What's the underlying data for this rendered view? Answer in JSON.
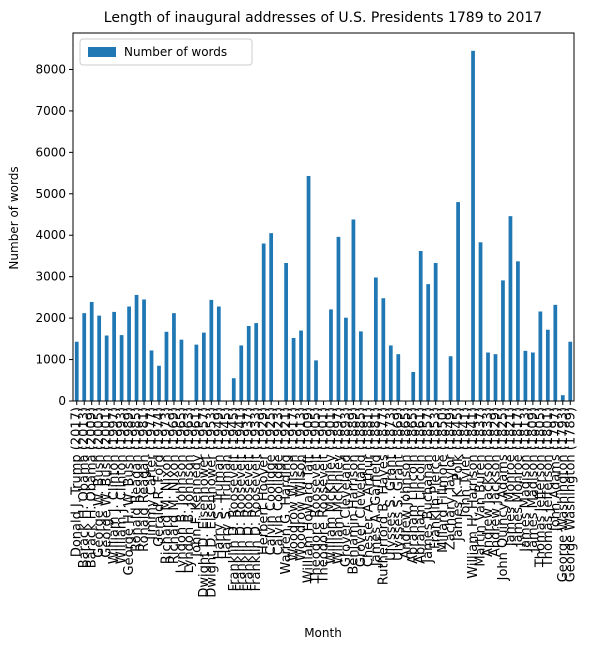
{
  "chart_data": {
    "type": "bar",
    "title": "Length of inaugural addresses of U.S. Presidents 1789 to 2017",
    "xlabel": "Month",
    "ylabel": "Number of words",
    "legend": "upper left",
    "categories": [
      "Donald J. Trump (2017)",
      "Barack H. Obama (2013)",
      "Barack H. Obama (2009)",
      "George W. Bush (2005)",
      "George W. Bush (2001)",
      "William J. Clinton (1997)",
      "William J. Clinton (1993)",
      "George H. W. Bush (1989)",
      "Ronald Reagan (1985)",
      "Ronald Reagan (1981)",
      "Jimmy Carter (1977)",
      "Gerald R. Ford (1974)",
      "Richard M. Nixon (1973)",
      "Richard M. Nixon (1969)",
      "Lyndon B. Johnson (1965)",
      "Lyndon B. Johnson (1963)",
      "John F. Kennedy (1961)",
      "Dwight D. Eisenhower (1957)",
      "Dwight D. Eisenhower (1953)",
      "Harry S. Truman (1949)",
      "Harry S. Truman (1945)",
      "Franklin D. Roosevelt (1945)",
      "Franklin D. Roosevelt (1941)",
      "Franklin D. Roosevelt (1937)",
      "Franklin D. Roosevelt (1933)",
      "Herbert Hoover (1929)",
      "Calvin Coolidge (1925)",
      "Calvin Coolidge (1923)",
      "Warren G. Harding (1921)",
      "Woodrow Wilson (1917)",
      "Woodrow Wilson (1913)",
      "William Howard Taft (1909)",
      "Theodore Roosevelt (1905)",
      "Theodore Roosevelt (1901)",
      "William McKinley (1901)",
      "William McKinley (1897)",
      "Grover Cleveland (1893)",
      "Benjamin Harrison (1889)",
      "Grover Cleveland (1885)",
      "Chester A. Arthur (1881)",
      "James A. Garfield (1881)",
      "Rutherford B. Hayes (1877)",
      "Ulysses S. Grant (1873)",
      "Ulysses S. Grant (1869)",
      "Andrew Johnson (1865)",
      "Abraham Lincoln (1865)",
      "Abraham Lincoln (1861)",
      "James Buchanan (1857)",
      "Franklin Pierce (1853)",
      "Millard Fillmore (1850)",
      "Zachary Taylor (1849)",
      "James K. Polk (1845)",
      "John Tyler (1841)",
      "William H. Harrison (1841)",
      "Martin Van Buren (1837)",
      "Andrew Jackson (1833)",
      "Andrew Jackson (1829)",
      "John Quincy Adams (1825)",
      "James Monroe (1821)",
      "James Monroe (1817)",
      "James Madison (1813)",
      "James Madison (1809)",
      "Thomas Jefferson (1805)",
      "Thomas Jefferson (1801)",
      "John Adams (1797)",
      "George Washington (1793)",
      "George Washington (1789)"
    ],
    "series": [
      {
        "name": "Number of words",
        "color": "#1f77b4",
        "values": [
          1430,
          2120,
          2390,
          2060,
          1580,
          2150,
          1590,
          2280,
          2560,
          2450,
          1220,
          850,
          1670,
          2120,
          1480,
          null,
          1360,
          1650,
          2440,
          2280,
          null,
          550,
          1340,
          1810,
          1880,
          3800,
          4050,
          null,
          3330,
          1520,
          1700,
          5430,
          980,
          null,
          2210,
          3960,
          2010,
          4380,
          1680,
          null,
          2980,
          2480,
          1340,
          1130,
          null,
          700,
          3620,
          2820,
          3330,
          null,
          1080,
          4800,
          null,
          8450,
          3830,
          1170,
          1130,
          2910,
          4460,
          3370,
          1210,
          1170,
          2160,
          1720,
          2320,
          140,
          1430
        ]
      }
    ],
    "ylim": [
      0,
      8880
    ],
    "yticks": [
      0,
      1000,
      2000,
      3000,
      4000,
      5000,
      6000,
      7000,
      8000
    ]
  }
}
